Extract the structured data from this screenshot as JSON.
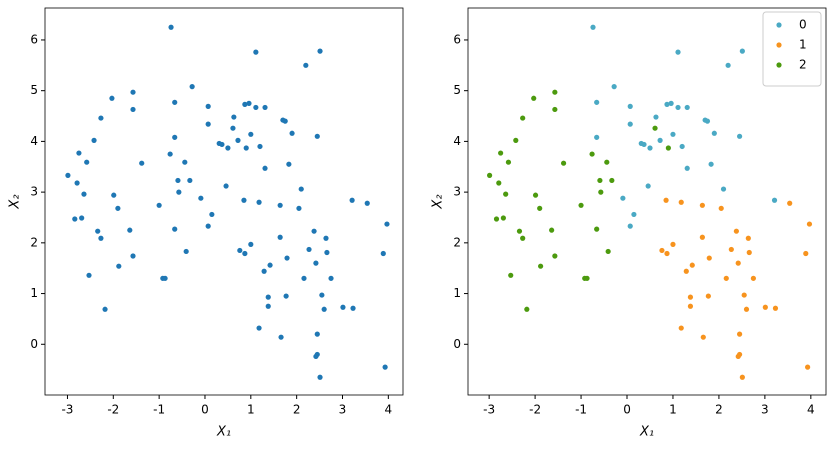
{
  "chart_data": [
    {
      "type": "scatter",
      "color": "#1f77b4",
      "xlabel": "X₁",
      "ylabel": "X₂",
      "xlim": [
        -3.49,
        4.32
      ],
      "ylim": [
        -1.0,
        6.63
      ],
      "xticks": [
        -3,
        -2,
        -1,
        0,
        1,
        2,
        3,
        4
      ],
      "yticks": [
        0,
        1,
        2,
        3,
        4,
        5,
        6
      ],
      "x": [
        -0.74,
        1.11,
        2.51,
        2.2,
        -0.28,
        -0.66,
        0.07,
        0.87,
        0.96,
        1.11,
        1.31,
        1.7,
        1.75,
        0.63,
        0.07,
        1.9,
        2.45,
        -0.66,
        1.0,
        0.31,
        0.37,
        0.5,
        0.72,
        1.2,
        1.31,
        1.83,
        0.46,
        2.1,
        -0.09,
        3.21,
        0.15,
        0.07,
        -1.57,
        -2.03,
        -1.57,
        -2.27,
        0.61,
        -2.42,
        0.9,
        -2.75,
        -0.76,
        -2.58,
        -1.38,
        -0.44,
        -0.59,
        -0.33,
        -2.99,
        -2.79,
        -0.57,
        -2.64,
        -1.99,
        -1.9,
        -1.0,
        -2.84,
        -2.69,
        -0.66,
        -1.64,
        -2.34,
        -2.27,
        -0.41,
        -1.57,
        -1.88,
        -0.92,
        -0.87,
        -2.53,
        -2.18,
        0.85,
        1.18,
        3.54,
        1.64,
        2.05,
        2.38,
        3.97,
        1.64,
        1.0,
        2.64,
        0.76,
        0.87,
        2.27,
        2.66,
        3.89,
        1.79,
        2.42,
        1.42,
        1.29,
        2.75,
        2.16,
        1.38,
        1.77,
        2.55,
        1.38,
        3.01,
        3.23,
        2.6,
        1.18,
        2.45,
        1.66,
        2.45,
        2.42,
        3.93,
        2.51
      ],
      "y": [
        6.25,
        5.76,
        5.78,
        5.5,
        5.08,
        4.77,
        4.69,
        4.73,
        4.75,
        4.67,
        4.67,
        4.42,
        4.4,
        4.48,
        4.34,
        4.16,
        4.1,
        4.08,
        4.14,
        3.96,
        3.94,
        3.87,
        4.02,
        3.9,
        3.47,
        3.55,
        3.12,
        3.06,
        2.88,
        2.84,
        2.56,
        2.33,
        4.97,
        4.85,
        4.63,
        4.46,
        4.26,
        4.02,
        3.87,
        3.77,
        3.75,
        3.59,
        3.57,
        3.59,
        3.23,
        3.23,
        3.33,
        3.18,
        3.0,
        2.96,
        2.94,
        2.68,
        2.74,
        2.47,
        2.49,
        2.27,
        2.25,
        2.23,
        2.09,
        1.83,
        1.74,
        1.54,
        1.3,
        1.3,
        1.36,
        0.69,
        2.84,
        2.8,
        2.78,
        2.74,
        2.68,
        2.23,
        2.37,
        2.11,
        1.97,
        2.09,
        1.85,
        1.79,
        1.87,
        1.81,
        1.79,
        1.7,
        1.6,
        1.56,
        1.44,
        1.3,
        1.3,
        0.93,
        0.95,
        0.97,
        0.75,
        0.73,
        0.71,
        0.69,
        0.32,
        0.2,
        0.14,
        -0.2,
        -0.24,
        -0.45,
        -0.65
      ]
    },
    {
      "type": "scatter",
      "xlabel": "X₁",
      "ylabel": "X₂",
      "legend": "upper right",
      "xlim": [
        -3.46,
        4.33
      ],
      "ylim": [
        -1.0,
        6.63
      ],
      "xticks": [
        -3,
        -2,
        -1,
        0,
        1,
        2,
        3,
        4
      ],
      "yticks": [
        0,
        1,
        2,
        3,
        4,
        5,
        6
      ],
      "series": [
        {
          "name": "0",
          "color": "#4aa9c4",
          "x": [
            -0.74,
            1.11,
            2.51,
            2.2,
            -0.28,
            -0.66,
            0.07,
            0.87,
            0.96,
            1.11,
            1.31,
            1.7,
            1.75,
            0.63,
            0.07,
            1.9,
            2.45,
            -0.66,
            1.0,
            0.31,
            0.37,
            0.5,
            0.72,
            1.2,
            1.31,
            1.83,
            0.46,
            2.1,
            -0.09,
            3.21,
            0.15,
            0.07
          ],
          "y": [
            6.25,
            5.76,
            5.78,
            5.5,
            5.08,
            4.77,
            4.69,
            4.73,
            4.75,
            4.67,
            4.67,
            4.42,
            4.4,
            4.48,
            4.34,
            4.16,
            4.1,
            4.08,
            4.14,
            3.96,
            3.94,
            3.87,
            4.02,
            3.9,
            3.47,
            3.55,
            3.12,
            3.06,
            2.88,
            2.84,
            2.56,
            2.33
          ]
        },
        {
          "name": "1",
          "color": "#f7931e",
          "x": [
            0.85,
            1.18,
            3.54,
            1.64,
            2.05,
            2.38,
            3.97,
            1.64,
            1.0,
            2.64,
            0.76,
            0.87,
            2.27,
            2.66,
            3.89,
            1.79,
            2.42,
            1.42,
            1.29,
            2.75,
            2.16,
            1.38,
            1.77,
            2.55,
            1.38,
            3.01,
            3.23,
            2.6,
            1.18,
            2.45,
            1.66,
            2.45,
            2.42,
            3.93,
            2.51
          ],
          "y": [
            2.84,
            2.8,
            2.78,
            2.74,
            2.68,
            2.23,
            2.37,
            2.11,
            1.97,
            2.09,
            1.85,
            1.79,
            1.87,
            1.81,
            1.79,
            1.7,
            1.6,
            1.56,
            1.44,
            1.3,
            1.3,
            0.93,
            0.95,
            0.97,
            0.75,
            0.73,
            0.71,
            0.69,
            0.32,
            0.2,
            0.14,
            -0.2,
            -0.24,
            -0.45,
            -0.65
          ]
        },
        {
          "name": "2",
          "color": "#4c9a0e",
          "x": [
            -1.57,
            -2.03,
            -1.57,
            -2.27,
            0.61,
            -2.42,
            0.9,
            -2.75,
            -0.76,
            -2.58,
            -1.38,
            -0.44,
            -0.59,
            -0.33,
            -2.99,
            -2.79,
            -0.57,
            -2.64,
            -1.99,
            -1.9,
            -1.0,
            -2.84,
            -2.69,
            -0.66,
            -1.64,
            -2.34,
            -2.27,
            -0.41,
            -1.57,
            -1.88,
            -0.92,
            -0.87,
            -2.53,
            -2.18
          ],
          "y": [
            4.97,
            4.85,
            4.63,
            4.46,
            4.26,
            4.02,
            3.87,
            3.77,
            3.75,
            3.59,
            3.57,
            3.59,
            3.23,
            3.23,
            3.33,
            3.18,
            3.0,
            2.96,
            2.94,
            2.68,
            2.74,
            2.47,
            2.49,
            2.27,
            2.25,
            2.23,
            2.09,
            1.83,
            1.74,
            1.54,
            1.3,
            1.3,
            1.36,
            0.69
          ]
        }
      ]
    }
  ]
}
